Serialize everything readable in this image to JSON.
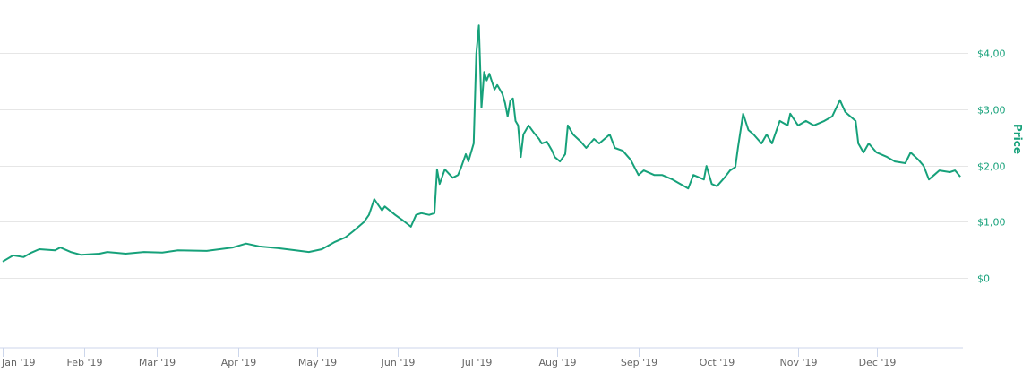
{
  "chart_data": {
    "type": "line",
    "title": "",
    "xlabel": "",
    "ylabel": "Price",
    "xlim": [
      "2019-01-01",
      "2020-01-03"
    ],
    "ylim": [
      -1.2,
      4.7
    ],
    "grid": true,
    "legend": "none",
    "y_axis_position": "right",
    "line_color": "#16a17a",
    "y_ticks": [
      {
        "value": 0,
        "label": "$0"
      },
      {
        "value": 1,
        "label": "$1,00"
      },
      {
        "value": 2,
        "label": "$2,00"
      },
      {
        "value": 3,
        "label": "$3,00"
      },
      {
        "value": 4,
        "label": "$4,00"
      }
    ],
    "x_ticks": [
      {
        "date": "2019-01-01",
        "label": "Jan '19"
      },
      {
        "date": "2019-02-01",
        "label": "Feb '19"
      },
      {
        "date": "2019-03-01",
        "label": "Mar '19"
      },
      {
        "date": "2019-04-01",
        "label": "Apr '19"
      },
      {
        "date": "2019-05-01",
        "label": "May '19"
      },
      {
        "date": "2019-06-01",
        "label": "Jun '19"
      },
      {
        "date": "2019-07-01",
        "label": "Jul '19"
      },
      {
        "date": "2019-08-01",
        "label": "Aug '19"
      },
      {
        "date": "2019-09-01",
        "label": "Sep '19"
      },
      {
        "date": "2019-10-01",
        "label": "Oct '19"
      },
      {
        "date": "2019-11-01",
        "label": "Nov '19"
      },
      {
        "date": "2019-12-01",
        "label": "Dec '19"
      }
    ],
    "series": [
      {
        "x": [
          "2019-01-01",
          "2019-01-05",
          "2019-01-09",
          "2019-01-12",
          "2019-01-15",
          "2019-01-21",
          "2019-01-23",
          "2019-01-27",
          "2019-01-31",
          "2019-02-07",
          "2019-02-10",
          "2019-02-17",
          "2019-02-24",
          "2019-03-03",
          "2019-03-09",
          "2019-03-20",
          "2019-03-30",
          "2019-04-04",
          "2019-04-09",
          "2019-04-16",
          "2019-04-23",
          "2019-04-28",
          "2019-05-03",
          "2019-05-08",
          "2019-05-12",
          "2019-05-15",
          "2019-05-19",
          "2019-05-21",
          "2019-05-23",
          "2019-05-26",
          "2019-05-27",
          "2019-05-31",
          "2019-06-03",
          "2019-06-06",
          "2019-06-08",
          "2019-06-10",
          "2019-06-13",
          "2019-06-15",
          "2019-06-16",
          "2019-06-17",
          "2019-06-19",
          "2019-06-22",
          "2019-06-24",
          "2019-06-25",
          "2019-06-27",
          "2019-06-28",
          "2019-06-30",
          "2019-07-01",
          "2019-07-02",
          "2019-07-03",
          "2019-07-04",
          "2019-07-05",
          "2019-07-06",
          "2019-07-08",
          "2019-07-09",
          "2019-07-11",
          "2019-07-12",
          "2019-07-13",
          "2019-07-14",
          "2019-07-15",
          "2019-07-16",
          "2019-07-17",
          "2019-07-18",
          "2019-07-19",
          "2019-07-21",
          "2019-07-23",
          "2019-07-25",
          "2019-07-26",
          "2019-07-28",
          "2019-07-30",
          "2019-07-31",
          "2019-08-02",
          "2019-08-04",
          "2019-08-05",
          "2019-08-07",
          "2019-08-10",
          "2019-08-12",
          "2019-08-15",
          "2019-08-17",
          "2019-08-21",
          "2019-08-23",
          "2019-08-26",
          "2019-08-29",
          "2019-09-01",
          "2019-09-03",
          "2019-09-07",
          "2019-09-10",
          "2019-09-14",
          "2019-09-17",
          "2019-09-20",
          "2019-09-22",
          "2019-09-26",
          "2019-09-27",
          "2019-09-29",
          "2019-10-01",
          "2019-10-04",
          "2019-10-06",
          "2019-10-08",
          "2019-10-09",
          "2019-10-11",
          "2019-10-13",
          "2019-10-15",
          "2019-10-18",
          "2019-10-20",
          "2019-10-22",
          "2019-10-25",
          "2019-10-28",
          "2019-10-29",
          "2019-11-01",
          "2019-11-04",
          "2019-11-07",
          "2019-11-11",
          "2019-11-14",
          "2019-11-17",
          "2019-11-19",
          "2019-11-23",
          "2019-11-24",
          "2019-11-26",
          "2019-11-28",
          "2019-12-01",
          "2019-12-05",
          "2019-12-08",
          "2019-12-12",
          "2019-12-14",
          "2019-12-17",
          "2019-12-19",
          "2019-12-21",
          "2019-12-23",
          "2019-12-25",
          "2019-12-29",
          "2019-12-31",
          "2020-01-02"
        ],
        "y": [
          0.29,
          0.4,
          0.37,
          0.45,
          0.51,
          0.49,
          0.54,
          0.46,
          0.41,
          0.43,
          0.46,
          0.43,
          0.46,
          0.45,
          0.49,
          0.48,
          0.54,
          0.61,
          0.56,
          0.53,
          0.49,
          0.46,
          0.51,
          0.64,
          0.72,
          0.83,
          0.99,
          1.12,
          1.4,
          1.2,
          1.27,
          1.12,
          1.02,
          0.91,
          1.12,
          1.15,
          1.12,
          1.15,
          1.93,
          1.67,
          1.93,
          1.78,
          1.83,
          1.94,
          2.2,
          2.07,
          2.39,
          3.98,
          4.49,
          3.03,
          3.66,
          3.51,
          3.63,
          3.35,
          3.43,
          3.27,
          3.11,
          2.87,
          3.15,
          3.19,
          2.79,
          2.71,
          2.15,
          2.55,
          2.71,
          2.58,
          2.47,
          2.39,
          2.42,
          2.26,
          2.15,
          2.07,
          2.2,
          2.71,
          2.55,
          2.42,
          2.31,
          2.47,
          2.39,
          2.55,
          2.31,
          2.26,
          2.1,
          1.83,
          1.91,
          1.83,
          1.83,
          1.75,
          1.67,
          1.59,
          1.83,
          1.75,
          1.99,
          1.67,
          1.63,
          1.79,
          1.91,
          1.97,
          2.31,
          2.92,
          2.63,
          2.55,
          2.39,
          2.55,
          2.39,
          2.79,
          2.71,
          2.92,
          2.71,
          2.79,
          2.71,
          2.79,
          2.87,
          3.16,
          2.95,
          2.79,
          2.39,
          2.23,
          2.39,
          2.23,
          2.15,
          2.07,
          2.04,
          2.23,
          2.1,
          1.99,
          1.75,
          1.83,
          1.91,
          1.88,
          1.91,
          1.8
        ]
      }
    ]
  }
}
